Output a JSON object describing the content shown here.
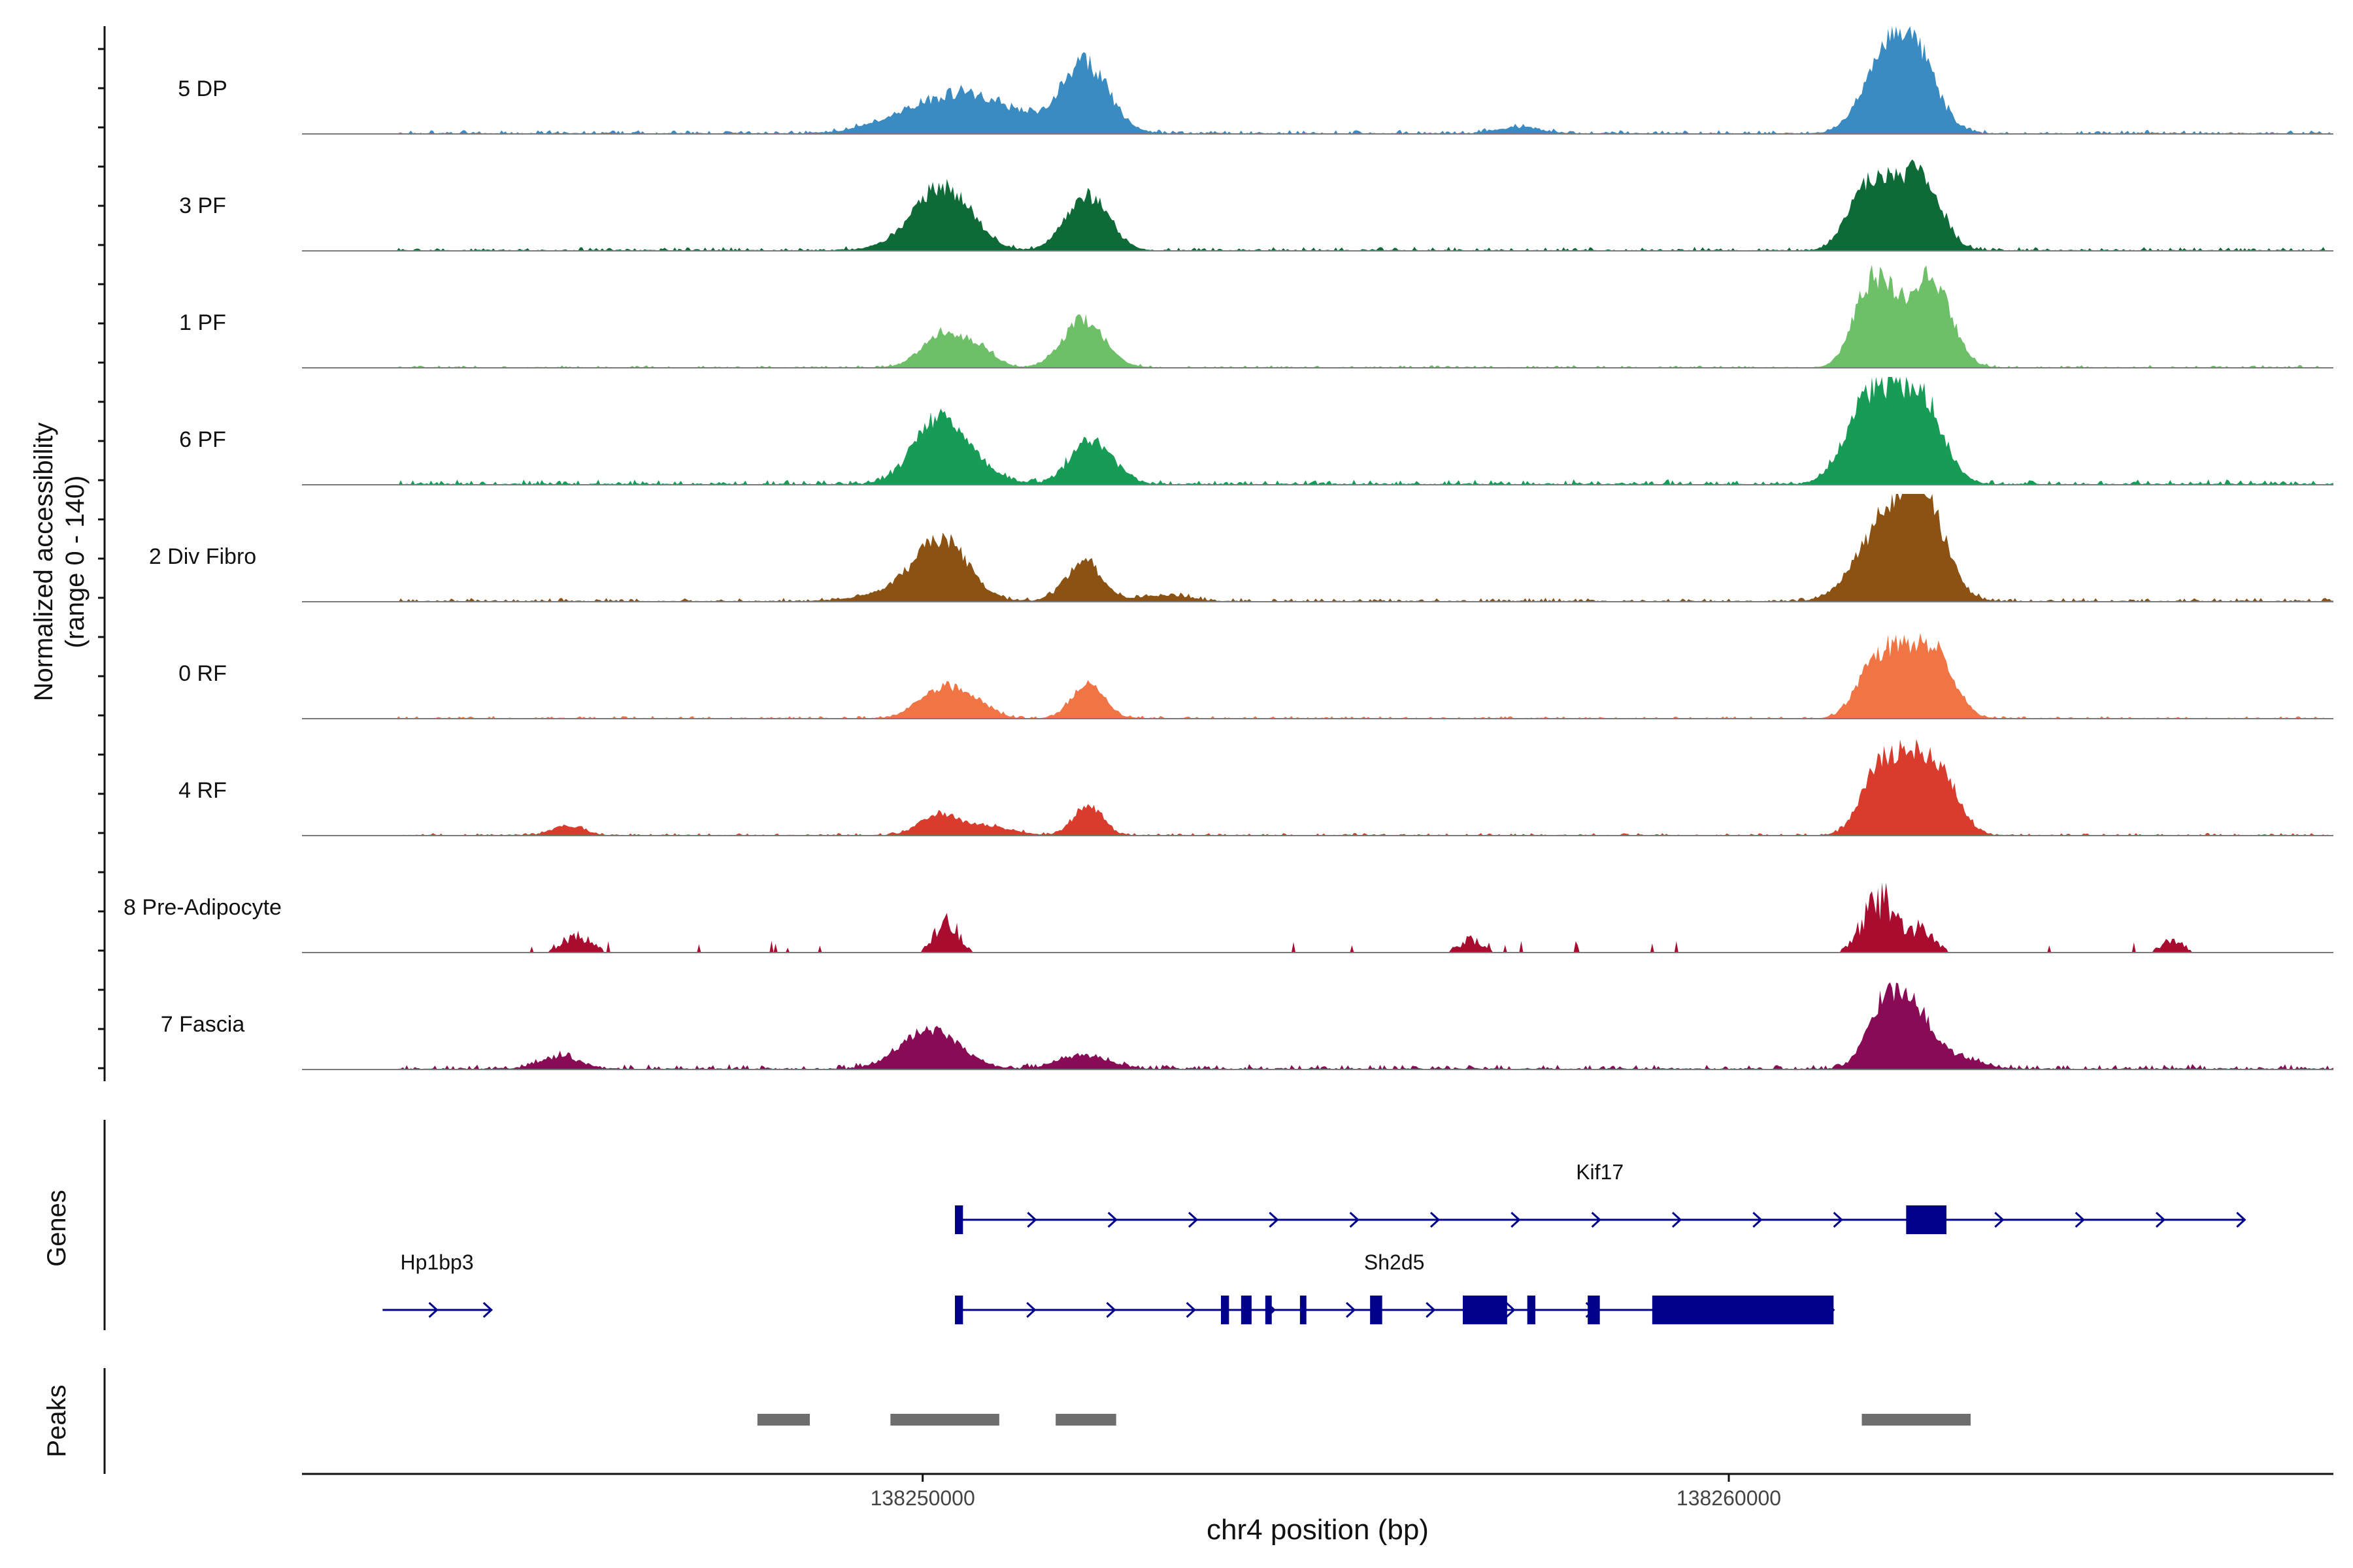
{
  "chart_data": {
    "type": "area",
    "title": "",
    "xlabel": "chr4 position (bp)",
    "ylabel": "Normalized accessibility",
    "ylabel_sub": "(range 0 - 140)",
    "ylim": [
      0,
      140
    ],
    "xlim": [
      138242300,
      138267500
    ],
    "x_ticks": [
      {
        "value": 138250000,
        "label": "138250000"
      },
      {
        "value": 138260000,
        "label": "138260000"
      }
    ],
    "tracks": [
      {
        "name": "5 DP",
        "color": "#3a8bc2",
        "peaks": [
          [
            138250200,
            560,
            40
          ],
          [
            138250700,
            350,
            22
          ],
          [
            138252000,
            300,
            92
          ],
          [
            138261950,
            280,
            98
          ],
          [
            138262350,
            260,
            78
          ],
          [
            138251200,
            220,
            12
          ],
          [
            138257400,
            260,
            8
          ]
        ],
        "noise_start": 138243500,
        "noise_end": 138268000,
        "noise": 3
      },
      {
        "name": "3 PF",
        "color": "#0e6b38",
        "peaks": [
          [
            138250250,
            300,
            66
          ],
          [
            138250000,
            380,
            20
          ],
          [
            138252050,
            260,
            72
          ],
          [
            138261950,
            260,
            60
          ],
          [
            138262400,
            240,
            84
          ],
          [
            138261650,
            220,
            50
          ],
          [
            138250700,
            220,
            12
          ]
        ],
        "noise_start": 138243500,
        "noise_end": 138268000,
        "noise": 3
      },
      {
        "name": "1 PF",
        "color": "#6dbf68",
        "peaks": [
          [
            138250250,
            260,
            44
          ],
          [
            138250700,
            200,
            22
          ],
          [
            138252000,
            260,
            62
          ],
          [
            138261900,
            240,
            78
          ],
          [
            138262500,
            250,
            118
          ],
          [
            138261700,
            200,
            50
          ]
        ],
        "noise_start": 138243500,
        "noise_end": 138268000,
        "noise": 2
      },
      {
        "name": "6 PF",
        "color": "#179c55",
        "peaks": [
          [
            138250150,
            300,
            68
          ],
          [
            138250500,
            320,
            30
          ],
          [
            138252100,
            260,
            58
          ],
          [
            138261900,
            270,
            86
          ],
          [
            138262400,
            260,
            106
          ],
          [
            138261600,
            260,
            52
          ]
        ],
        "noise_start": 138243500,
        "noise_end": 138268000,
        "noise": 4
      },
      {
        "name": "2 Div Fibro",
        "color": "#8c5213",
        "peaks": [
          [
            138250250,
            320,
            76
          ],
          [
            138249700,
            400,
            14
          ],
          [
            138252000,
            220,
            52
          ],
          [
            138261900,
            330,
            90
          ],
          [
            138262400,
            280,
            124
          ],
          [
            138253000,
            300,
            8
          ]
        ],
        "noise_start": 138243500,
        "noise_end": 138268000,
        "noise": 3
      },
      {
        "name": "0 RF",
        "color": "#f07444",
        "peaks": [
          [
            138250250,
            280,
            40
          ],
          [
            138250700,
            200,
            14
          ],
          [
            138252050,
            200,
            44
          ],
          [
            138261800,
            220,
            66
          ],
          [
            138262200,
            220,
            72
          ],
          [
            138262600,
            220,
            74
          ]
        ],
        "noise_start": 138243500,
        "noise_end": 138268000,
        "noise": 2
      },
      {
        "name": "4 RF",
        "color": "#d93b2c",
        "peaks": [
          [
            138250200,
            240,
            26
          ],
          [
            138250800,
            300,
            12
          ],
          [
            138252050,
            180,
            38
          ],
          [
            138261850,
            220,
            76
          ],
          [
            138262250,
            230,
            84
          ],
          [
            138262650,
            220,
            68
          ],
          [
            138245600,
            200,
            12
          ]
        ],
        "noise_start": 138243500,
        "noise_end": 138268000,
        "noise": 2
      },
      {
        "name": "8 Pre-Adipocyte",
        "color": "#a80d30",
        "peaks": [
          [
            138250300,
            140,
            52
          ],
          [
            138245700,
            180,
            26
          ],
          [
            138262000,
            200,
            40
          ],
          [
            138261800,
            180,
            52
          ],
          [
            138262400,
            160,
            30
          ],
          [
            138256800,
            140,
            20
          ],
          [
            138265500,
            140,
            18
          ]
        ],
        "noise_start": 138243500,
        "noise_end": 138268000,
        "noise": 0,
        "sparse": true
      },
      {
        "name": "7 Fascia",
        "color": "#8a0b55",
        "peaks": [
          [
            138250100,
            360,
            50
          ],
          [
            138252000,
            300,
            18
          ],
          [
            138245500,
            250,
            16
          ],
          [
            138261950,
            220,
            90
          ],
          [
            138262350,
            200,
            58
          ],
          [
            138262800,
            300,
            16
          ]
        ],
        "noise_start": 138243500,
        "noise_end": 138268000,
        "noise": 4
      }
    ],
    "genes_label": "Genes",
    "genes": [
      {
        "name": "Kif17",
        "start": 138250400,
        "end": 138266400,
        "strand": "+",
        "row": 0,
        "exons": [
          [
            138250400,
            138250500
          ],
          [
            138262200,
            138262700
          ]
        ]
      },
      {
        "name": "Sh2d5",
        "start": 138250400,
        "end": 138261300,
        "strand": "+",
        "row": 1,
        "exons": [
          [
            138250400,
            138250500
          ],
          [
            138253700,
            138253800
          ],
          [
            138253950,
            138254080
          ],
          [
            138254250,
            138254330
          ],
          [
            138254680,
            138254760
          ],
          [
            138255550,
            138255700
          ],
          [
            138256700,
            138257250
          ],
          [
            138257500,
            138257600
          ],
          [
            138258250,
            138258400
          ],
          [
            138259050,
            138261300
          ]
        ]
      },
      {
        "name": "Hp1bp3",
        "start": 138243300,
        "end": 138244650,
        "strand": "+",
        "row": 1,
        "exons": []
      }
    ],
    "peaks_label": "Peaks",
    "peaks": [
      [
        138247950,
        138248600
      ],
      [
        138249600,
        138250950
      ],
      [
        138251650,
        138252400
      ],
      [
        138261650,
        138263000
      ]
    ]
  }
}
